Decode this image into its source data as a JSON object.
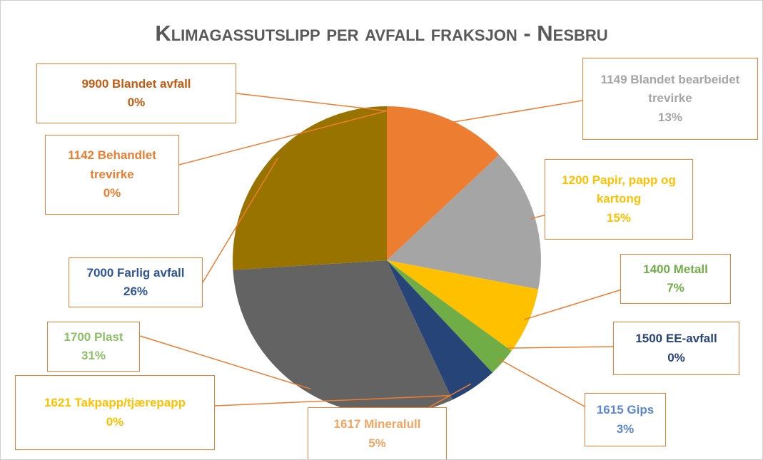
{
  "chart_data": {
    "type": "pie",
    "title": "Klimagassutslipp per avfall fraksjon - Nesbru",
    "categories": [
      "1149 Blandet bearbeidet trevirke",
      "1200 Papir, papp og kartong",
      "1400 Metall",
      "1500 EE-avfall",
      "1615 Gips",
      "1617 Mineralull",
      "1621 Takpapp/tjærepapp",
      "1700 Plast",
      "7000 Farlig avfall",
      "1142 Behandlet trevirke",
      "9900 Blandet avfall"
    ],
    "values": [
      13,
      15,
      7,
      0,
      3,
      5,
      0,
      31,
      26,
      0,
      0
    ],
    "value_labels": [
      "13%",
      "15%",
      "7%",
      "0%",
      "3%",
      "5%",
      "0%",
      "31%",
      "26%",
      "0%",
      "0%"
    ],
    "colors": [
      "#ed7d31",
      "#a5a5a5",
      "#ffc000",
      "#5b9bd5",
      "#70ad47",
      "#264478",
      "#9e480e",
      "#636363",
      "#997300",
      "#255e91",
      "#43682b"
    ],
    "label_colors": [
      "#a5a5a5",
      "#ffc000",
      "#70ad47",
      "#264478",
      "#5b87d0",
      "#f4a460",
      "#ffc000",
      "#8cc168",
      "#2f5597",
      "#ed7d31",
      "#c55a11"
    ]
  }
}
